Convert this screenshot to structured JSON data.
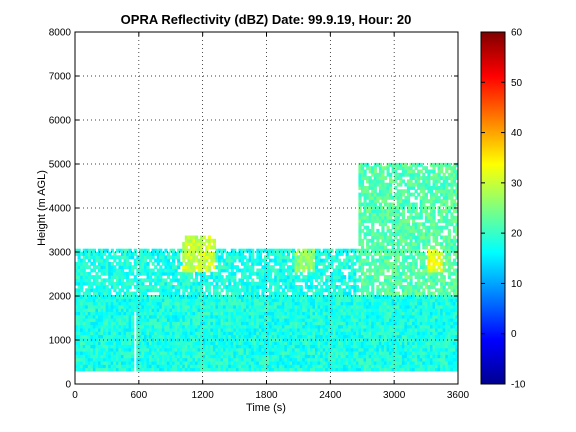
{
  "chart_data": {
    "type": "heatmap",
    "title": "OPRA Reflectivity (dBZ)  Date: 99.9.19, Hour: 20",
    "xlabel": "Time (s)",
    "ylabel": "Height (m AGL)",
    "xlim": [
      0,
      3600
    ],
    "ylim": [
      0,
      8000
    ],
    "xticks": [
      "0",
      "600",
      "1200",
      "1800",
      "2400",
      "3000",
      "3600"
    ],
    "yticks": [
      "0",
      "1000",
      "2000",
      "3000",
      "4000",
      "5000",
      "6000",
      "7000",
      "8000"
    ],
    "grid": true,
    "colorbar": {
      "range": [
        -10,
        60
      ],
      "ticks": [
        "-10",
        "0",
        "10",
        "20",
        "30",
        "40",
        "50",
        "60"
      ],
      "colormap": "jet"
    },
    "echo_regions": [
      {
        "description": "low-level echo layer",
        "t_start": 0,
        "t_end": 3600,
        "h_bottom": 300,
        "h_top": 3000,
        "typical_dBZ": 18
      },
      {
        "description": "gap in low-level echo",
        "t_start": 540,
        "t_end": 555,
        "h_bottom": 300,
        "h_top": 1600,
        "typical_dBZ": null
      },
      {
        "description": "weaker band near 700 m",
        "t_start": 0,
        "t_end": 3600,
        "h_bottom": 600,
        "h_top": 800,
        "typical_dBZ": 12
      },
      {
        "description": "enhanced echo",
        "t_start": 1000,
        "t_end": 1300,
        "h_bottom": 2500,
        "h_top": 3300,
        "typical_dBZ": 30
      },
      {
        "description": "enhanced echo",
        "t_start": 2050,
        "t_end": 2250,
        "h_bottom": 2500,
        "h_top": 3000,
        "typical_dBZ": 26
      },
      {
        "description": "upper echo",
        "t_start": 2650,
        "t_end": 3600,
        "h_bottom": 2000,
        "h_top": 5000,
        "typical_dBZ": 22
      },
      {
        "description": "enhanced echo",
        "t_start": 3300,
        "t_end": 3450,
        "h_bottom": 2500,
        "h_top": 3000,
        "typical_dBZ": 32
      }
    ]
  }
}
